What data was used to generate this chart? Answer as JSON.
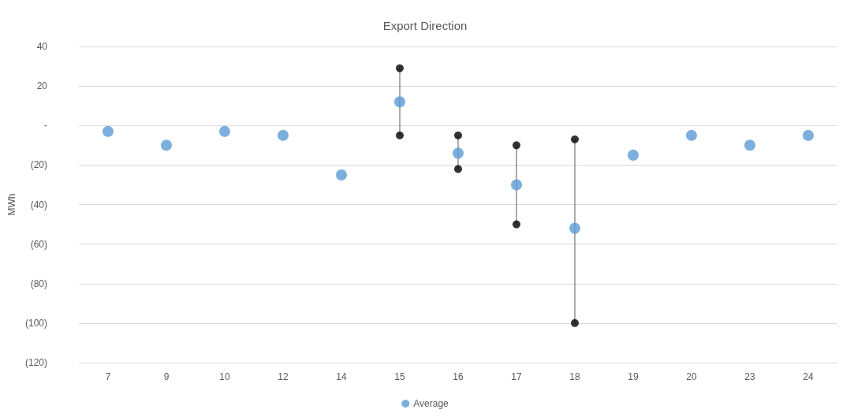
{
  "chart_data": {
    "type": "scatter",
    "title": "Export Direction",
    "ylabel": "MWh",
    "categories": [
      "7",
      "9",
      "10",
      "12",
      "14",
      "15",
      "16",
      "17",
      "18",
      "19",
      "20",
      "23",
      "24"
    ],
    "series": [
      {
        "name": "Average",
        "color": "#5b9bd5",
        "values": [
          -3,
          -10,
          -3,
          -5,
          -25,
          12,
          -14,
          -30,
          -52,
          -15,
          -5,
          -10,
          -5
        ]
      },
      {
        "type": "line",
        "marker": "none",
        "color": "#595959",
        "x": [
          "15",
          "15"
        ],
        "values": [
          -5,
          29
        ]
      },
      {
        "type": "line",
        "marker": "none",
        "color": "#595959",
        "x": [
          "16",
          "16"
        ],
        "values": [
          -22,
          -5
        ]
      },
      {
        "type": "line",
        "marker": "none",
        "color": "#595959",
        "x": [
          "17",
          "17"
        ],
        "values": [
          -50,
          -10
        ]
      },
      {
        "type": "line",
        "marker": "none",
        "color": "#595959",
        "x": [
          "18",
          "18"
        ],
        "values": [
          -100,
          -7
        ]
      },
      {
        "color": "#000000",
        "values": [
          null,
          null,
          null,
          null,
          null,
          29,
          -5,
          -10,
          -7,
          null,
          null,
          null,
          null
        ]
      },
      {
        "color": "#000000",
        "values": [
          null,
          null,
          null,
          null,
          null,
          -5,
          -22,
          -50,
          -100,
          null,
          null,
          null,
          null
        ]
      }
    ],
    "ylim": [
      -120,
      40
    ],
    "yticks": [
      {
        "value": -120,
        "label": "(120)"
      },
      {
        "value": -100,
        "label": "(100)"
      },
      {
        "value": -80,
        "label": "(80)"
      },
      {
        "value": -60,
        "label": "(60)"
      },
      {
        "value": -40,
        "label": "(40)"
      },
      {
        "value": -20,
        "label": "(20)"
      },
      {
        "value": 0,
        "label": "-"
      },
      20,
      40
    ],
    "grid": "y",
    "legend": "bottom",
    "marker": "circle"
  }
}
